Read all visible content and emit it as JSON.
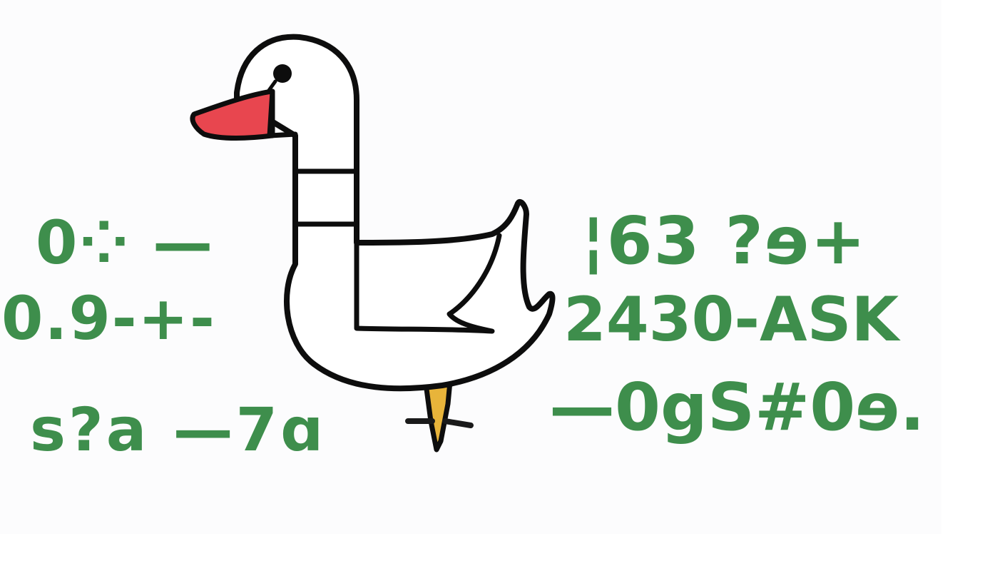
{
  "colors": {
    "scribble": "#3e8e4c",
    "outline": "#0d0d0d",
    "beak": "#e8464f",
    "foot": "#e8b43a",
    "body": "#ffffff"
  },
  "scribbles": {
    "left_1": "0⁘  —",
    "left_2": "0.9-+-",
    "left_3": "s?a —7ɑ",
    "right_1": "¦63  ?ɘ+",
    "right_2": "2430-ASK",
    "right_3": "—0gS#0ɘ."
  }
}
